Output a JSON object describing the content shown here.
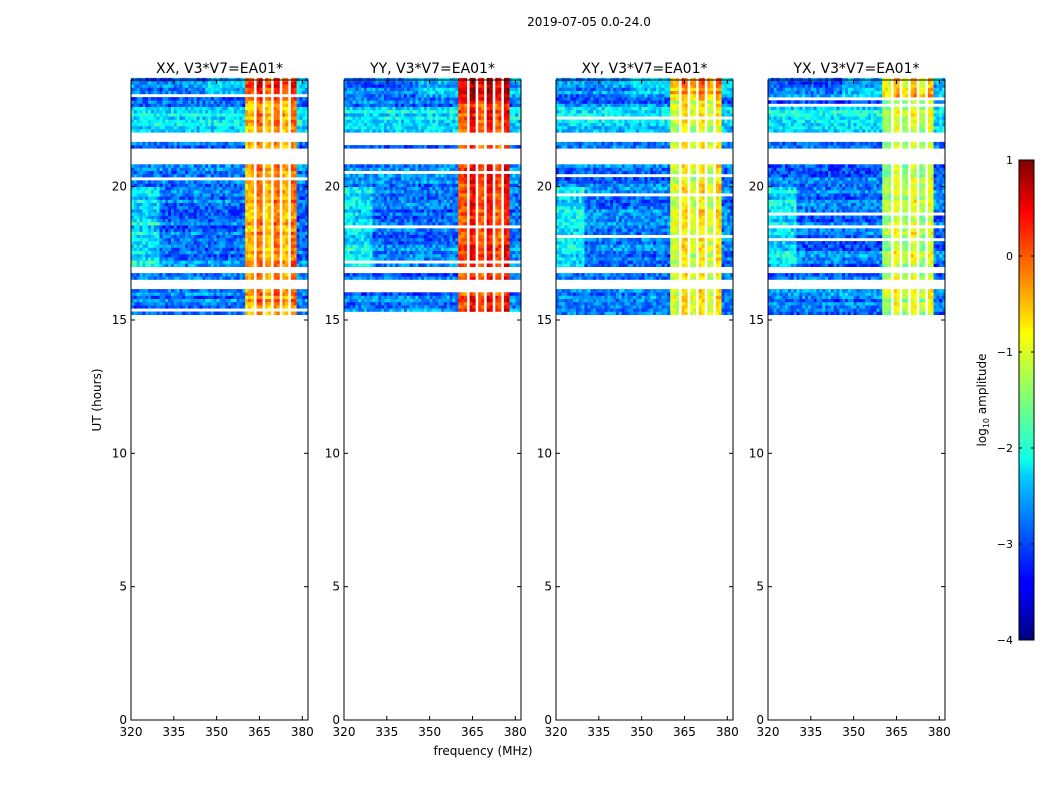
{
  "figure": {
    "suptitle": "2019-07-05 0.0-24.0",
    "xlabel": "frequency (MHz)",
    "ylabel": "UT (hours)"
  },
  "chart_data": {
    "type": "heatmap",
    "title": "2019-07-05 0.0-24.0",
    "xlabel": "frequency (MHz)",
    "ylabel": "UT (hours)",
    "xlim": [
      320,
      382
    ],
    "ylim": [
      0,
      24
    ],
    "xticks": [
      320,
      335,
      350,
      365,
      380
    ],
    "yticks": [
      0,
      5,
      10,
      15,
      20
    ],
    "data_time_range_hours": [
      15.2,
      24.0
    ],
    "data_gaps_hours": [
      [
        16.1,
        16.5
      ],
      [
        16.8,
        17.0
      ],
      [
        20.8,
        21.5
      ],
      [
        21.7,
        22.1
      ]
    ],
    "bright_band_mhz": [
      360,
      378
    ],
    "panels": [
      {
        "title": "XX, V3*V7=EA01*",
        "peak_level": -0.2
      },
      {
        "title": "YY, V3*V7=EA01*",
        "peak_level": 0.3
      },
      {
        "title": "XY, V3*V7=EA01*",
        "peak_level": -0.8
      },
      {
        "title": "YX, V3*V7=EA01*",
        "peak_level": -1.0
      }
    ],
    "colorbar": {
      "label": "log10 amplitude",
      "label_base": "log",
      "label_sub": "10",
      "label_rest": " amplitude",
      "range": [
        -4,
        1
      ],
      "ticks": [
        1,
        0,
        -1,
        -2,
        -3,
        -4
      ],
      "tick_labels": [
        "1",
        "0",
        "−1",
        "−2",
        "−3",
        "−4"
      ],
      "colormap": "jet"
    }
  }
}
